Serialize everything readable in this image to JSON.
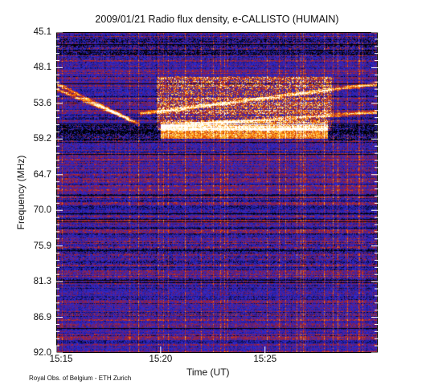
{
  "chart_data": {
    "type": "heatmap",
    "title": "2009/01/21  Radio flux density, e-CALLISTO (HUMAIN)",
    "xlabel": "Time (UT)",
    "ylabel": "Frequency (MHz)",
    "x_ticks": [
      "15:15",
      "15:20",
      "15:25"
    ],
    "x_range_minutes": [
      0,
      15.4
    ],
    "x_tick_minutes": [
      0,
      5,
      10
    ],
    "y_ticks": [
      "45.1",
      "48.1",
      "53.6",
      "59.2",
      "64.7",
      "70.0",
      "75.9",
      "81.3",
      "86.9",
      "92.0"
    ],
    "y_range": [
      45.1,
      92.0
    ],
    "y_inverted": true,
    "colormap": [
      "#000000",
      "#1a1a8c",
      "#2b2bd8",
      "#6a1a6a",
      "#c0281a",
      "#ff7a00",
      "#ffd84a",
      "#ffffff"
    ],
    "features": {
      "drifting_bursts": [
        {
          "t_start_min": 0.0,
          "t_end_min": 4.0,
          "f_start_mhz": 52.6,
          "f_end_mhz": 58.6
        },
        {
          "t_start_min": 0.0,
          "t_end_min": 3.5,
          "f_start_mhz": 53.4,
          "f_end_mhz": 57.8
        },
        {
          "t_start_min": 4.0,
          "t_end_min": 15.4,
          "f_start_mhz": 57.0,
          "f_end_mhz": 52.6
        },
        {
          "t_start_min": 5.0,
          "t_end_min": 15.4,
          "f_start_mhz": 58.8,
          "f_end_mhz": 56.8
        }
      ],
      "strong_band": {
        "t_start_min": 5.0,
        "t_end_min": 13.0,
        "f_low_mhz": 58.2,
        "f_high_mhz": 60.6
      }
    },
    "grid": false
  },
  "credit": "Royal Obs. of Belgium - ETH Zurich"
}
